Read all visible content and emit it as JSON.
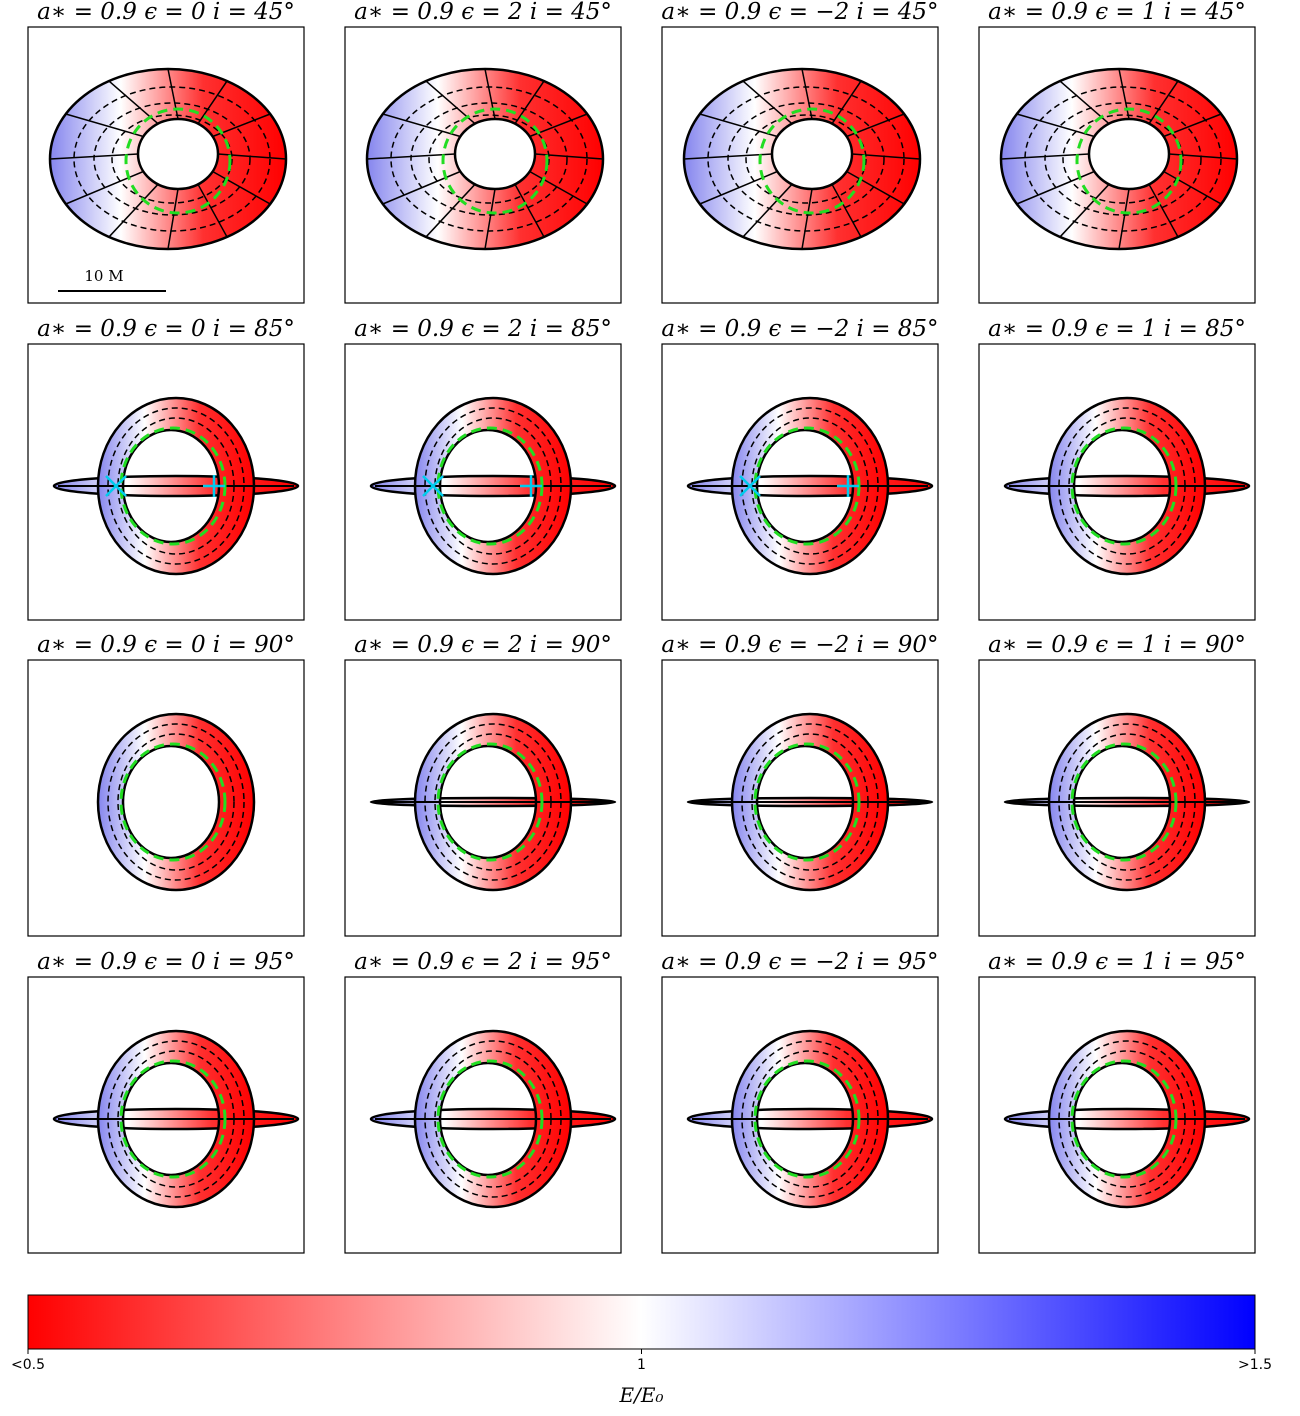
{
  "panels": [
    {
      "title": "a∗ = 0.9   ϵ = 0   i = 45°"
    },
    {
      "title": "a∗ = 0.9   ϵ = 2   i = 45°"
    },
    {
      "title": "a∗ = 0.9   ϵ = −2   i = 45°"
    },
    {
      "title": "a∗ = 0.9   ϵ = 1   i = 45°"
    },
    {
      "title": "a∗ = 0.9   ϵ = 0   i = 85°"
    },
    {
      "title": "a∗ = 0.9   ϵ = 2   i = 85°"
    },
    {
      "title": "a∗ = 0.9   ϵ = −2   i = 85°"
    },
    {
      "title": "a∗ = 0.9   ϵ = 1   i = 85°"
    },
    {
      "title": "a∗ = 0.9   ϵ = 0   i = 90°"
    },
    {
      "title": "a∗ = 0.9   ϵ = 2   i = 90°"
    },
    {
      "title": "a∗ = 0.9   ϵ = −2   i = 90°"
    },
    {
      "title": "a∗ = 0.9   ϵ = 1   i = 90°"
    },
    {
      "title": "a∗ = 0.9   ϵ = 0   i = 95°"
    },
    {
      "title": "a∗ = 0.9   ϵ = 2   i = 95°"
    },
    {
      "title": "a∗ = 0.9   ϵ = −2   i = 95°"
    },
    {
      "title": "a∗ = 0.9   ϵ = 1   i = 95°"
    }
  ],
  "scale_bar": {
    "label": "10 M"
  },
  "colorbar": {
    "label": "E/E₀",
    "lim": [
      0.5,
      1.5
    ],
    "ticks": [
      {
        "value": 0.5,
        "label": "<0.5"
      },
      1,
      {
        "value": 1.5,
        "label": ">1.5"
      }
    ]
  }
}
